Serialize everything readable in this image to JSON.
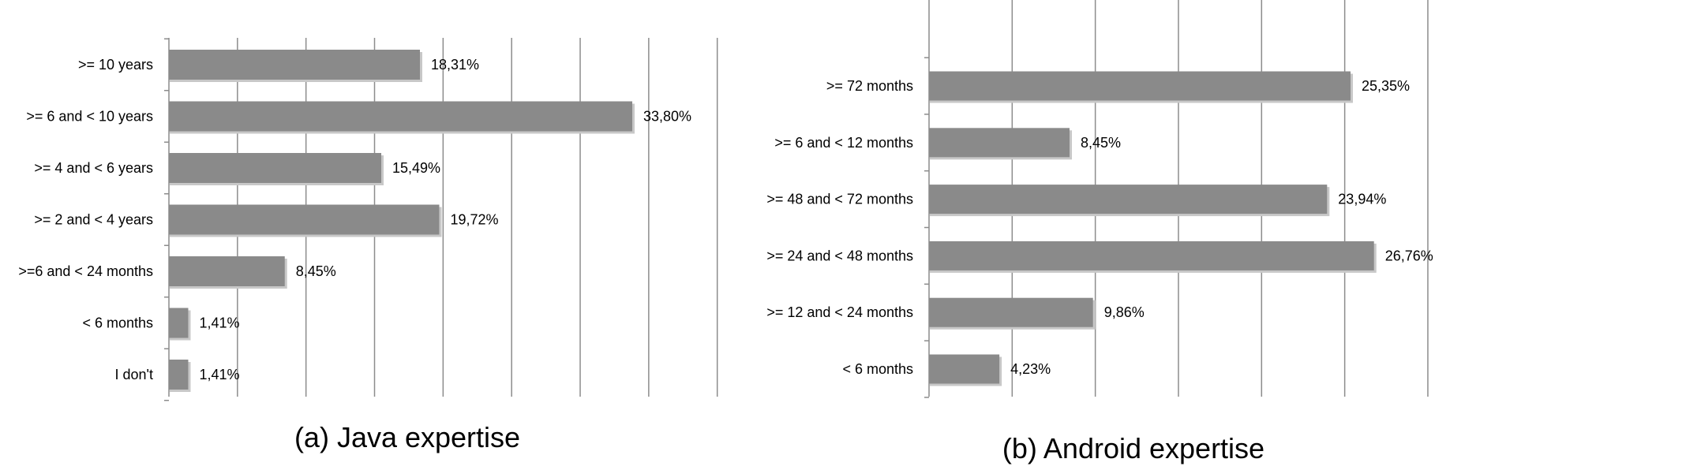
{
  "chart_data": [
    {
      "type": "bar",
      "orientation": "horizontal",
      "caption": "(a) Java expertise",
      "categories": [
        ">= 10 years",
        ">= 6 and < 10 years",
        ">= 4 and < 6 years",
        ">= 2 and < 4 years",
        ">=6 and < 24 months",
        "< 6 months",
        "I don't"
      ],
      "values": [
        18.31,
        33.8,
        15.49,
        19.72,
        8.45,
        1.41,
        1.41
      ],
      "value_labels": [
        "18,31%",
        "33,80%",
        "15,49%",
        "19,72%",
        "8,45%",
        "1,41%",
        "1,41%"
      ],
      "xlim": [
        0,
        40
      ],
      "grid": true
    },
    {
      "type": "bar",
      "orientation": "horizontal",
      "caption": "(b) Android expertise",
      "categories": [
        ">= 72 months",
        ">= 6 and < 12 months",
        ">= 48 and < 72 months",
        ">= 24 and < 48 months",
        ">= 12 and < 24 months",
        "< 6 months"
      ],
      "values": [
        25.35,
        8.45,
        23.94,
        26.76,
        9.86,
        4.23
      ],
      "value_labels": [
        "25,35%",
        "8,45%",
        "23,94%",
        "26,76%",
        "9,86%",
        "4,23%"
      ],
      "xlim": [
        0,
        30
      ],
      "grid": true
    }
  ]
}
